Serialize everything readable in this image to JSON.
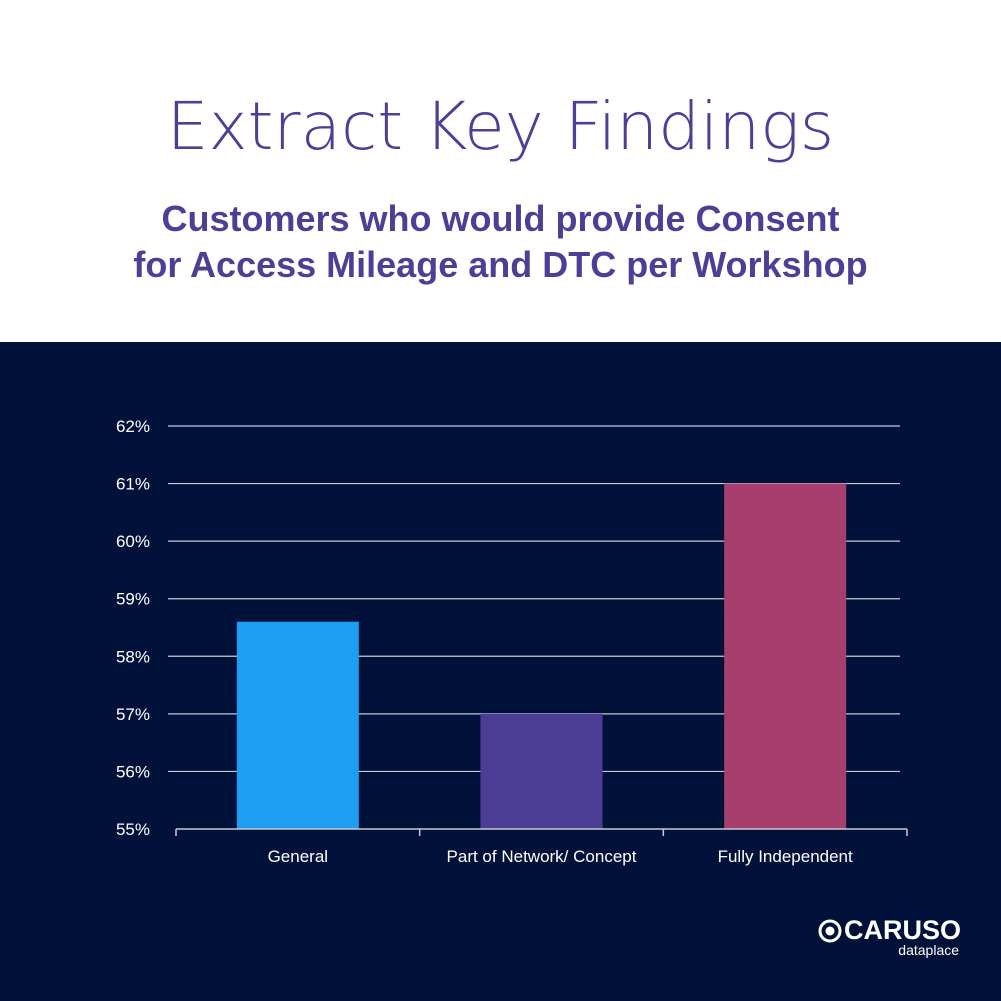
{
  "header": {
    "title": "Extract Key Findings",
    "subtitle_line1": "Customers who would provide Consent",
    "subtitle_line2": "for Access Mileage and DTC per Workshop"
  },
  "chart_data": {
    "type": "bar",
    "categories": [
      "General",
      "Part of Network/ Concept",
      "Fully Independent"
    ],
    "values": [
      58.6,
      57.0,
      61.0
    ],
    "colors": [
      "#1e9ef2",
      "#4b3c96",
      "#a63e6e"
    ],
    "ylim": [
      55,
      62
    ],
    "yticks": [
      "55%",
      "56%",
      "57%",
      "58%",
      "59%",
      "60%",
      "61%",
      "62%"
    ],
    "grid": true,
    "xlabel": "",
    "ylabel": ""
  },
  "logo": {
    "name": "CARUSO",
    "tagline": "dataplace"
  },
  "colors": {
    "background": "#00113a",
    "title": "#4b3f96"
  }
}
